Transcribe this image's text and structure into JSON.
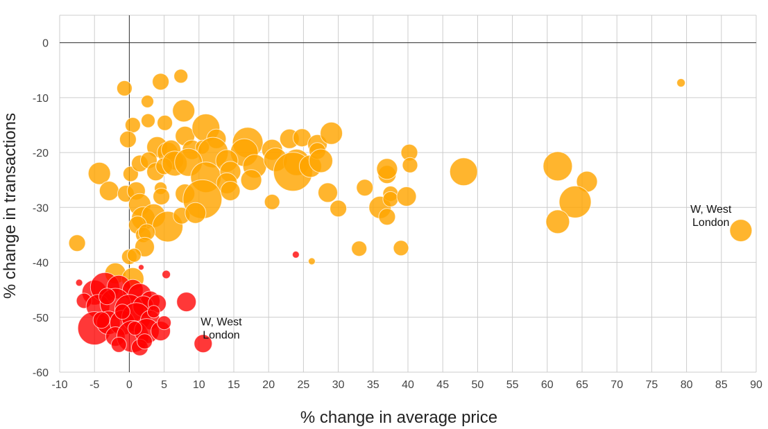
{
  "chart_data": {
    "type": "scatter",
    "xlabel": "% change in average price",
    "ylabel": "% change in transactions",
    "xlim": [
      -10,
      90
    ],
    "ylim": [
      -60,
      5
    ],
    "x_ticks": [
      -10,
      -5,
      0,
      5,
      10,
      15,
      20,
      25,
      30,
      35,
      40,
      45,
      50,
      55,
      60,
      65,
      70,
      75,
      80,
      85,
      90
    ],
    "y_ticks": [
      0,
      -10,
      -20,
      -30,
      -40,
      -50,
      -60
    ],
    "grid": true,
    "legend": "none",
    "colors": {
      "red": "#ff0000",
      "orange": "#ffa500"
    },
    "annotations": [
      {
        "text": [
          "W, West",
          "London"
        ],
        "x": 13.2,
        "y": -51.5,
        "anchor": "middle"
      },
      {
        "text": [
          "W, West",
          "London"
        ],
        "x": 83.5,
        "y": -31.0,
        "anchor": "middle"
      }
    ],
    "series": [
      {
        "color": "orange",
        "points": [
          [
            -0.7,
            -8.3,
            11
          ],
          [
            4.5,
            -7.1,
            12
          ],
          [
            7.4,
            -6.1,
            10
          ],
          [
            2.6,
            -10.7,
            9
          ],
          [
            7.8,
            -12.4,
            16
          ],
          [
            79.2,
            -7.3,
            6
          ],
          [
            0.5,
            -15.0,
            11
          ],
          [
            2.7,
            -14.2,
            10
          ],
          [
            5.1,
            -14.6,
            11
          ],
          [
            -0.2,
            -17.6,
            12
          ],
          [
            8.0,
            -17.0,
            14
          ],
          [
            11.0,
            -15.5,
            20
          ],
          [
            12.5,
            -17.5,
            14
          ],
          [
            17.0,
            -18.2,
            22
          ],
          [
            20.5,
            -19.5,
            15
          ],
          [
            23.0,
            -17.5,
            14
          ],
          [
            24.8,
            -17.3,
            13
          ],
          [
            27.0,
            -18.5,
            14
          ],
          [
            29.0,
            -16.5,
            16
          ],
          [
            4.0,
            -19.0,
            15
          ],
          [
            5.5,
            -20.0,
            15
          ],
          [
            6.0,
            -19.5,
            14
          ],
          [
            6.5,
            -21.5,
            13
          ],
          [
            9.0,
            -19.5,
            14
          ],
          [
            10.5,
            -19.0,
            10
          ],
          [
            12.0,
            -20.0,
            22
          ],
          [
            16.5,
            -20.0,
            20
          ],
          [
            14.0,
            -21.5,
            16
          ],
          [
            18.0,
            -22.5,
            17
          ],
          [
            21.0,
            -21.3,
            17
          ],
          [
            24.0,
            -21.8,
            19
          ],
          [
            23.5,
            -23.5,
            28
          ],
          [
            26.0,
            -22.5,
            16
          ],
          [
            27.0,
            -19.7,
            12
          ],
          [
            27.5,
            -21.5,
            17
          ],
          [
            -4.3,
            -23.8,
            16
          ],
          [
            0.2,
            -23.9,
            11
          ],
          [
            1.5,
            -22.0,
            12
          ],
          [
            2.8,
            -21.4,
            12
          ],
          [
            3.8,
            -23.5,
            13
          ],
          [
            5.0,
            -22.5,
            12
          ],
          [
            6.5,
            -22.0,
            18
          ],
          [
            8.5,
            -21.8,
            20
          ],
          [
            11.0,
            -24.5,
            22
          ],
          [
            14.5,
            -23.5,
            15
          ],
          [
            17.5,
            -25.0,
            15
          ],
          [
            14.0,
            -25.6,
            15
          ],
          [
            40.2,
            -20.0,
            12
          ],
          [
            40.3,
            -22.3,
            11
          ],
          [
            48.0,
            -23.5,
            20
          ],
          [
            61.5,
            -22.5,
            21
          ],
          [
            65.7,
            -25.3,
            15
          ],
          [
            37.0,
            -24.0,
            13
          ],
          [
            37.0,
            -23.0,
            15
          ],
          [
            33.8,
            -26.4,
            12
          ],
          [
            -2.9,
            -27.0,
            14
          ],
          [
            -0.5,
            -27.5,
            12
          ],
          [
            1.0,
            -27.0,
            13
          ],
          [
            4.5,
            -26.5,
            9
          ],
          [
            4.6,
            -28.0,
            12
          ],
          [
            8.0,
            -27.5,
            14
          ],
          [
            10.5,
            -28.5,
            28
          ],
          [
            14.5,
            -27.0,
            14
          ],
          [
            20.5,
            -29.0,
            11
          ],
          [
            28.5,
            -27.3,
            14
          ],
          [
            30.0,
            -30.2,
            12
          ],
          [
            36.0,
            -30.0,
            16
          ],
          [
            37.5,
            -27.5,
            11
          ],
          [
            37.0,
            -31.7,
            12
          ],
          [
            37.5,
            -28.5,
            11
          ],
          [
            39.8,
            -28.0,
            14
          ],
          [
            64.0,
            -29.0,
            23
          ],
          [
            61.5,
            -32.6,
            17
          ],
          [
            87.8,
            -34.2,
            16
          ],
          [
            1.5,
            -29.5,
            16
          ],
          [
            2.0,
            -32.0,
            17
          ],
          [
            3.5,
            -31.5,
            17
          ],
          [
            5.5,
            -33.5,
            22
          ],
          [
            7.5,
            -31.5,
            12
          ],
          [
            9.5,
            -31.0,
            15
          ],
          [
            1.2,
            -33.2,
            13
          ],
          [
            2.0,
            -35.0,
            11
          ],
          [
            2.5,
            -34.5,
            12
          ],
          [
            -7.5,
            -36.5,
            12
          ],
          [
            2.2,
            -37.2,
            14
          ],
          [
            0.0,
            -39.0,
            11
          ],
          [
            0.7,
            -38.7,
            10
          ],
          [
            33.0,
            -37.5,
            11
          ],
          [
            39.0,
            -37.4,
            11
          ],
          [
            -2.0,
            -42.0,
            15
          ],
          [
            0.5,
            -43.0,
            16
          ],
          [
            26.2,
            -39.8,
            5
          ],
          [
            -3.5,
            -46.5,
            10
          ]
        ]
      },
      {
        "color": "red",
        "points": [
          [
            -7.2,
            -43.7,
            5
          ],
          [
            1.7,
            -40.9,
            4
          ],
          [
            5.3,
            -42.2,
            6
          ],
          [
            23.9,
            -38.6,
            5
          ],
          [
            -5.0,
            -45.5,
            18
          ],
          [
            -3.5,
            -44.5,
            21
          ],
          [
            -1.5,
            -44.5,
            17
          ],
          [
            0.5,
            -45.0,
            15
          ],
          [
            1.5,
            -46.0,
            17
          ],
          [
            3.0,
            -47.0,
            14
          ],
          [
            -6.5,
            -47.0,
            11
          ],
          [
            -4.5,
            -48.0,
            17
          ],
          [
            -2.0,
            -47.5,
            22
          ],
          [
            0.0,
            -48.5,
            21
          ],
          [
            2.0,
            -48.0,
            15
          ],
          [
            4.0,
            -47.5,
            13
          ],
          [
            8.2,
            -47.2,
            14
          ],
          [
            -5.0,
            -52.0,
            24
          ],
          [
            -3.0,
            -51.0,
            17
          ],
          [
            -1.0,
            -51.0,
            18
          ],
          [
            1.0,
            -50.0,
            21
          ],
          [
            3.0,
            -50.5,
            14
          ],
          [
            3.5,
            -49.0,
            9
          ],
          [
            -4.0,
            -50.5,
            12
          ],
          [
            -2.0,
            -53.5,
            14
          ],
          [
            0.5,
            -53.5,
            23
          ],
          [
            2.5,
            -52.5,
            18
          ],
          [
            4.5,
            -52.5,
            14
          ],
          [
            5.0,
            -51.0,
            10
          ],
          [
            -1.5,
            -55.0,
            11
          ],
          [
            1.5,
            -55.5,
            12
          ],
          [
            2.2,
            -54.4,
            11
          ],
          [
            10.6,
            -54.8,
            13
          ],
          [
            -1.0,
            -49.0,
            11
          ],
          [
            0.8,
            -52.0,
            10
          ],
          [
            -3.2,
            -46.2,
            12
          ]
        ]
      }
    ]
  }
}
